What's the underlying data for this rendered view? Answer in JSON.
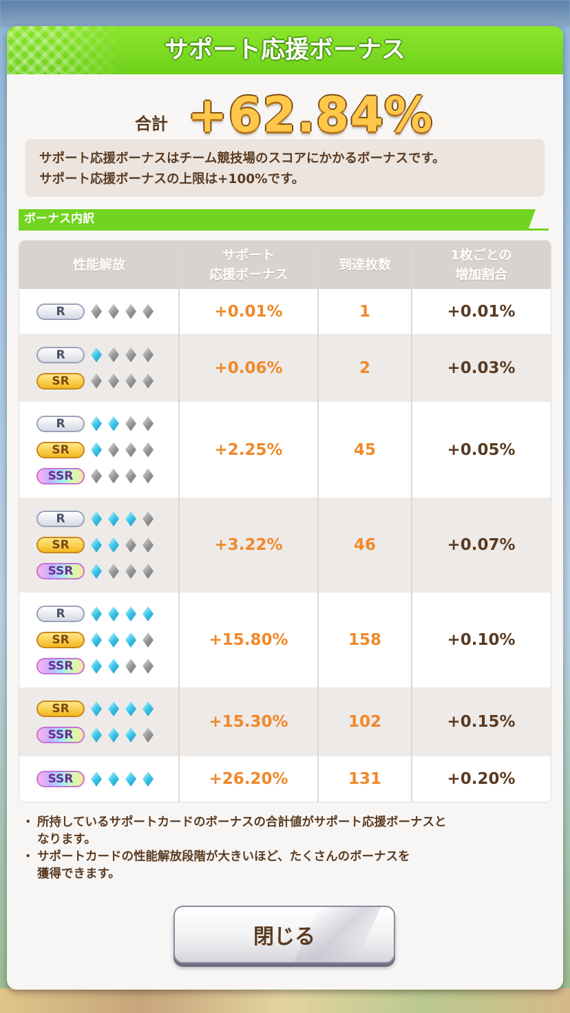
{
  "dialog": {
    "title": "サポート応援ボーナス",
    "total_label": "合計",
    "total_value": "+62.84%",
    "notice_line1": "サポート応援ボーナスはチーム競技場のスコアにかかるボーナスです。",
    "notice_line2": "サポート応援ボーナスの上限は+100%です。",
    "section_label": "ボーナス内訳"
  },
  "table": {
    "headers": {
      "unlock": "性能解放",
      "bonus_line1": "サポート",
      "bonus_line2": "応援ボーナス",
      "count": "到達枚数",
      "rate_line1": "1枚ごとの",
      "rate_line2": "増加割合"
    },
    "rows": [
      {
        "tiers": [
          {
            "rarity": "R",
            "level": 0
          }
        ],
        "bonus": "+0.01%",
        "count": "1",
        "rate": "+0.01%"
      },
      {
        "tiers": [
          {
            "rarity": "R",
            "level": 1
          },
          {
            "rarity": "SR",
            "level": 0
          }
        ],
        "bonus": "+0.06%",
        "count": "2",
        "rate": "+0.03%"
      },
      {
        "tiers": [
          {
            "rarity": "R",
            "level": 2
          },
          {
            "rarity": "SR",
            "level": 1
          },
          {
            "rarity": "SSR",
            "level": 0
          }
        ],
        "bonus": "+2.25%",
        "count": "45",
        "rate": "+0.05%"
      },
      {
        "tiers": [
          {
            "rarity": "R",
            "level": 3
          },
          {
            "rarity": "SR",
            "level": 2
          },
          {
            "rarity": "SSR",
            "level": 1
          }
        ],
        "bonus": "+3.22%",
        "count": "46",
        "rate": "+0.07%"
      },
      {
        "tiers": [
          {
            "rarity": "R",
            "level": 4
          },
          {
            "rarity": "SR",
            "level": 3
          },
          {
            "rarity": "SSR",
            "level": 2
          }
        ],
        "bonus": "+15.80%",
        "count": "158",
        "rate": "+0.10%"
      },
      {
        "tiers": [
          {
            "rarity": "SR",
            "level": 4
          },
          {
            "rarity": "SSR",
            "level": 3
          }
        ],
        "bonus": "+15.30%",
        "count": "102",
        "rate": "+0.15%"
      },
      {
        "tiers": [
          {
            "rarity": "SSR",
            "level": 4
          }
        ],
        "bonus": "+26.20%",
        "count": "131",
        "rate": "+0.20%"
      }
    ]
  },
  "footnotes": {
    "note1_line1": "所持しているサポートカードのボーナスの合計値がサポート応援ボーナスと",
    "note1_line2": "なります。",
    "note2_line1": "サポートカードの性能解放段階が大きいほど、たくさんのボーナスを",
    "note2_line2": "獲得できます。"
  },
  "close_button": {
    "label": "閉じる"
  },
  "colors": {
    "header_green": "#72d320",
    "value_orange": "#f0882a",
    "text_brown": "#5a3b22",
    "gem_on": "#3cc6e8",
    "gem_off": "#9a9a9a"
  },
  "icons": {
    "gem_on": "blue-diamond-gem-icon",
    "gem_off": "gray-diamond-gem-icon"
  }
}
